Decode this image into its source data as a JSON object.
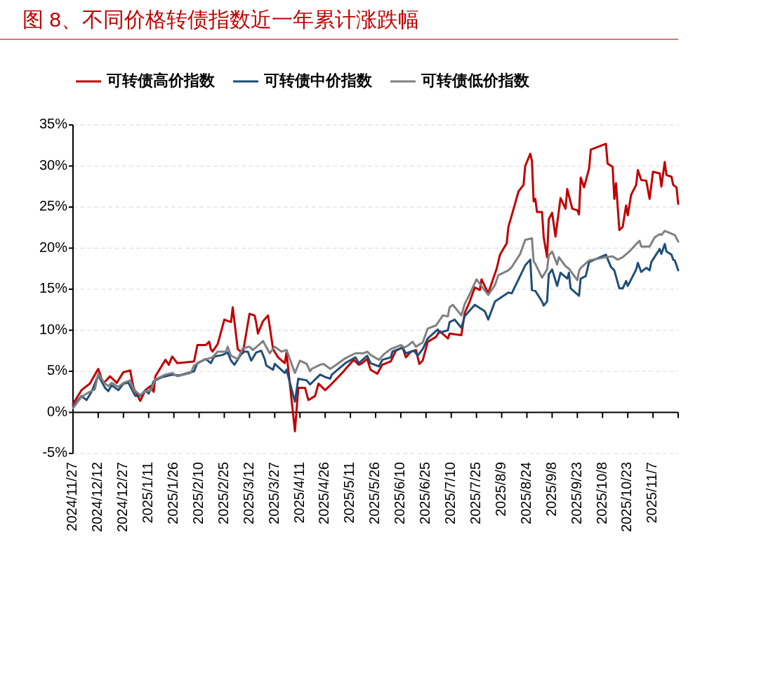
{
  "chart_data": {
    "type": "line",
    "title": "图 8、不同价格转债指数近一年累计涨跌幅",
    "legend": "top",
    "grid": "y",
    "xlim": [
      "2024-11-27",
      "2025-11-22"
    ],
    "xticks": [
      {
        "value": "2024-11-27",
        "label": "2024/11/27"
      },
      {
        "value": "2024-12-12",
        "label": "2024/12/12"
      },
      {
        "value": "2024-12-27",
        "label": "2024/12/27"
      },
      {
        "value": "2025-01-11",
        "label": "2025/1/11"
      },
      {
        "value": "2025-01-26",
        "label": "2025/1/26"
      },
      {
        "value": "2025-02-10",
        "label": "2025/2/10"
      },
      {
        "value": "2025-02-25",
        "label": "2025/2/25"
      },
      {
        "value": "2025-03-12",
        "label": "2025/3/12"
      },
      {
        "value": "2025-03-27",
        "label": "2025/3/27"
      },
      {
        "value": "2025-04-11",
        "label": "2025/4/11"
      },
      {
        "value": "2025-04-26",
        "label": "2025/4/26"
      },
      {
        "value": "2025-05-11",
        "label": "2025/5/11"
      },
      {
        "value": "2025-05-26",
        "label": "2025/5/26"
      },
      {
        "value": "2025-06-10",
        "label": "2025/6/10"
      },
      {
        "value": "2025-06-25",
        "label": "2025/6/25"
      },
      {
        "value": "2025-07-10",
        "label": "2025/7/10"
      },
      {
        "value": "2025-07-25",
        "label": "2025/7/25"
      },
      {
        "value": "2025-08-09",
        "label": "2025/8/9"
      },
      {
        "value": "2025-08-24",
        "label": "2025/8/24"
      },
      {
        "value": "2025-09-08",
        "label": "2025/9/8"
      },
      {
        "value": "2025-09-23",
        "label": "2025/9/23"
      },
      {
        "value": "2025-10-08",
        "label": "2025/10/8"
      },
      {
        "value": "2025-10-23",
        "label": "2025/10/23"
      },
      {
        "value": "2025-11-07",
        "label": "2025/11/7"
      },
      {
        "value": "2025-11-22",
        "label": null
      }
    ],
    "ylim": [
      -5,
      35
    ],
    "yticks": [
      {
        "value": -5,
        "label": "-5%"
      },
      {
        "value": 0,
        "label": "0%"
      },
      {
        "value": 5,
        "label": "5%"
      },
      {
        "value": 10,
        "label": "10%"
      },
      {
        "value": 15,
        "label": "15%"
      },
      {
        "value": 20,
        "label": "20%"
      },
      {
        "value": 25,
        "label": "25%"
      },
      {
        "value": 30,
        "label": "30%"
      },
      {
        "value": 35,
        "label": "35%"
      }
    ],
    "series": [
      {
        "name": "可转债高价指数",
        "color": "#c00000",
        "x": [
          "2024-11-27",
          "2024-12-02",
          "2024-12-07",
          "2024-12-12",
          "2024-12-15",
          "2024-12-19",
          "2024-12-23",
          "2024-12-27",
          "2024-12-31",
          "2025-01-02",
          "2025-01-06",
          "2025-01-09",
          "2025-01-12",
          "2025-01-14",
          "2025-01-15",
          "2025-01-21",
          "2025-01-23",
          "2025-01-25",
          "2025-01-28",
          "2025-02-07",
          "2025-02-09",
          "2025-02-14",
          "2025-02-16",
          "2025-02-17",
          "2025-02-18",
          "2025-02-21",
          "2025-02-22",
          "2025-02-25",
          "2025-03-01",
          "2025-03-02",
          "2025-03-05",
          "2025-03-08",
          "2025-03-12",
          "2025-03-15",
          "2025-03-16",
          "2025-03-17",
          "2025-03-20",
          "2025-03-23",
          "2025-03-24",
          "2025-03-26",
          "2025-03-29",
          "2025-04-02",
          "2025-04-03",
          "2025-04-08",
          "2025-04-10",
          "2025-04-14",
          "2025-04-16",
          "2025-04-20",
          "2025-04-22",
          "2025-04-26",
          "2025-04-30",
          "2025-05-07",
          "2025-05-09",
          "2025-05-13",
          "2025-05-16",
          "2025-05-18",
          "2025-05-21",
          "2025-05-23",
          "2025-05-27",
          "2025-05-30",
          "2025-06-04",
          "2025-06-07",
          "2025-06-11",
          "2025-06-13",
          "2025-06-16",
          "2025-06-19",
          "2025-06-21",
          "2025-06-23",
          "2025-06-26",
          "2025-07-01",
          "2025-07-03",
          "2025-07-08",
          "2025-07-09",
          "2025-07-16",
          "2025-07-18",
          "2025-07-21",
          "2025-07-24",
          "2025-07-27",
          "2025-07-28",
          "2025-08-01",
          "2025-08-06",
          "2025-08-08",
          "2025-08-12",
          "2025-08-13",
          "2025-08-15",
          "2025-08-19",
          "2025-08-22",
          "2025-08-23",
          "2025-08-26",
          "2025-08-27",
          "2025-08-28",
          "2025-08-29",
          "2025-08-30",
          "2025-09-02",
          "2025-09-03",
          "2025-09-05",
          "2025-09-06",
          "2025-09-08",
          "2025-09-10",
          "2025-09-13",
          "2025-09-16",
          "2025-09-17",
          "2025-09-20",
          "2025-09-23",
          "2025-09-24",
          "2025-09-25",
          "2025-09-27",
          "2025-09-30",
          "2025-10-01",
          "2025-10-10",
          "2025-10-11",
          "2025-10-14",
          "2025-10-15",
          "2025-10-16",
          "2025-10-18",
          "2025-10-20",
          "2025-10-22",
          "2025-10-23",
          "2025-10-25",
          "2025-10-28",
          "2025-10-29",
          "2025-10-31",
          "2025-11-03",
          "2025-11-05",
          "2025-11-07",
          "2025-11-11",
          "2025-11-12",
          "2025-11-14",
          "2025-11-15",
          "2025-11-18",
          "2025-11-19",
          "2025-11-21",
          "2025-11-22"
        ],
        "values": [
          1.0,
          2.7,
          3.5,
          5.3,
          3.5,
          4.4,
          3.6,
          4.9,
          5.1,
          3.0,
          1.4,
          2.7,
          3.2,
          2.5,
          4.4,
          6.4,
          5.8,
          6.8,
          6.0,
          6.2,
          8.2,
          8.2,
          8.6,
          7.7,
          7.4,
          8.3,
          9.0,
          11.3,
          11.0,
          12.8,
          7.7,
          7.2,
          12.0,
          11.8,
          10.9,
          9.6,
          11.1,
          11.8,
          10.5,
          7.7,
          6.7,
          6.0,
          7.3,
          -2.3,
          3.0,
          3.0,
          1.5,
          2.0,
          3.5,
          2.7,
          3.5,
          5.0,
          5.5,
          6.4,
          5.8,
          6.0,
          6.5,
          5.2,
          4.7,
          5.8,
          6.2,
          7.5,
          7.9,
          6.7,
          7.4,
          7.6,
          5.9,
          6.3,
          8.6,
          9.2,
          9.9,
          9.0,
          9.6,
          9.4,
          12.1,
          13.5,
          15.2,
          14.9,
          16.2,
          14.5,
          17.5,
          19.2,
          20.6,
          22.6,
          24.0,
          26.9,
          27.7,
          30.0,
          31.5,
          30.6,
          25.7,
          26.0,
          24.4,
          24.4,
          21.3,
          18.9,
          23.5,
          24.3,
          21.4,
          26.1,
          24.8,
          27.2,
          24.8,
          24.6,
          24.1,
          28.6,
          27.4,
          29.7,
          32.0,
          32.7,
          30.3,
          29.9,
          26.0,
          27.9,
          22.2,
          22.6,
          25.2,
          24.0,
          26.5,
          27.7,
          29.5,
          28.3,
          28.2,
          26.0,
          29.3,
          29.1,
          27.5,
          30.5,
          28.9,
          28.7,
          27.7,
          27.4,
          25.4
        ]
      },
      {
        "name": "可转债中价指数",
        "color": "#1f4e79",
        "x": [
          "2024-11-27",
          "2024-12-02",
          "2024-12-05",
          "2024-12-08",
          "2024-12-12",
          "2024-12-16",
          "2024-12-18",
          "2024-12-20",
          "2024-12-24",
          "2024-12-27",
          "2024-12-30",
          "2025-01-03",
          "2025-01-06",
          "2025-01-09",
          "2025-01-11",
          "2025-01-14",
          "2025-01-19",
          "2025-01-25",
          "2025-01-29",
          "2025-02-07",
          "2025-02-09",
          "2025-02-14",
          "2025-02-17",
          "2025-02-19",
          "2025-02-24",
          "2025-02-27",
          "2025-03-01",
          "2025-03-03",
          "2025-03-08",
          "2025-03-11",
          "2025-03-13",
          "2025-03-16",
          "2025-03-19",
          "2025-03-21",
          "2025-03-22",
          "2025-03-26",
          "2025-03-27",
          "2025-04-02",
          "2025-04-03",
          "2025-04-08",
          "2025-04-10",
          "2025-04-15",
          "2025-04-17",
          "2025-04-23",
          "2025-04-26",
          "2025-04-29",
          "2025-04-30",
          "2025-05-08",
          "2025-05-14",
          "2025-05-16",
          "2025-05-21",
          "2025-05-23",
          "2025-05-28",
          "2025-05-30",
          "2025-06-04",
          "2025-06-05",
          "2025-06-11",
          "2025-06-13",
          "2025-06-18",
          "2025-06-20",
          "2025-06-23",
          "2025-06-26",
          "2025-07-02",
          "2025-07-03",
          "2025-07-08",
          "2025-07-09",
          "2025-07-12",
          "2025-07-16",
          "2025-07-18",
          "2025-07-24",
          "2025-07-30",
          "2025-08-01",
          "2025-08-05",
          "2025-08-13",
          "2025-08-15",
          "2025-08-23",
          "2025-08-26",
          "2025-08-27",
          "2025-08-29",
          "2025-09-02",
          "2025-09-03",
          "2025-09-05",
          "2025-09-06",
          "2025-09-08",
          "2025-09-11",
          "2025-09-13",
          "2025-09-17",
          "2025-09-18",
          "2025-09-19",
          "2025-09-24",
          "2025-09-25",
          "2025-09-28",
          "2025-09-30",
          "2025-10-10",
          "2025-10-13",
          "2025-10-15",
          "2025-10-18",
          "2025-10-20",
          "2025-10-22",
          "2025-10-23",
          "2025-10-28",
          "2025-10-29",
          "2025-10-31",
          "2025-11-03",
          "2025-11-05",
          "2025-11-06",
          "2025-11-11",
          "2025-11-12",
          "2025-11-14",
          "2025-11-15",
          "2025-11-18",
          "2025-11-19",
          "2025-11-20",
          "2025-11-22"
        ],
        "values": [
          0.7,
          2.0,
          1.5,
          2.5,
          4.5,
          3.0,
          2.6,
          3.3,
          2.7,
          3.5,
          3.6,
          2.0,
          2.0,
          2.7,
          2.3,
          3.8,
          4.3,
          4.6,
          4.5,
          5.0,
          6.0,
          6.5,
          6.0,
          6.8,
          7.0,
          7.3,
          6.3,
          5.8,
          7.4,
          7.4,
          6.3,
          7.3,
          7.5,
          6.5,
          5.7,
          5.2,
          5.9,
          4.8,
          5.2,
          1.3,
          4.1,
          3.9,
          3.4,
          4.6,
          4.3,
          4.1,
          4.6,
          6.0,
          6.7,
          6.0,
          6.9,
          6.0,
          5.6,
          6.4,
          6.7,
          7.4,
          7.9,
          7.2,
          7.5,
          6.9,
          7.7,
          9.0,
          10.1,
          9.7,
          10.0,
          11.0,
          11.3,
          10.3,
          11.7,
          13.1,
          12.3,
          11.3,
          13.5,
          14.6,
          14.5,
          17.9,
          18.6,
          14.9,
          14.8,
          13.5,
          13.0,
          13.5,
          16.8,
          17.4,
          15.4,
          17.0,
          16.3,
          17.0,
          15.1,
          14.2,
          16.3,
          16.6,
          18.3,
          19.2,
          17.7,
          17.3,
          15.1,
          15.1,
          16.0,
          15.4,
          17.4,
          18.2,
          17.1,
          17.6,
          17.3,
          18.3,
          19.9,
          19.3,
          20.5,
          19.6,
          19.2,
          18.6,
          18.5,
          17.3
        ]
      },
      {
        "name": "可转债低价指数",
        "color": "#808080",
        "x": [
          "2024-11-27",
          "2024-12-02",
          "2024-12-06",
          "2024-12-10",
          "2024-12-12",
          "2024-12-16",
          "2024-12-18",
          "2024-12-20",
          "2024-12-24",
          "2024-12-27",
          "2024-12-31",
          "2025-01-02",
          "2025-01-06",
          "2025-01-09",
          "2025-01-12",
          "2025-01-15",
          "2025-01-21",
          "2025-01-25",
          "2025-01-28",
          "2025-02-05",
          "2025-02-07",
          "2025-02-13",
          "2025-02-18",
          "2025-02-21",
          "2025-02-26",
          "2025-02-27",
          "2025-03-01",
          "2025-03-05",
          "2025-03-08",
          "2025-03-12",
          "2025-03-14",
          "2025-03-18",
          "2025-03-20",
          "2025-03-24",
          "2025-03-27",
          "2025-03-31",
          "2025-04-03",
          "2025-04-08",
          "2025-04-11",
          "2025-04-13",
          "2025-04-15",
          "2025-04-17",
          "2025-04-18",
          "2025-04-23",
          "2025-04-25",
          "2025-04-29",
          "2025-05-02",
          "2025-05-08",
          "2025-05-14",
          "2025-05-19",
          "2025-05-21",
          "2025-05-23",
          "2025-05-28",
          "2025-05-31",
          "2025-06-04",
          "2025-06-10",
          "2025-06-12",
          "2025-06-14",
          "2025-06-17",
          "2025-06-19",
          "2025-06-23",
          "2025-06-26",
          "2025-07-01",
          "2025-07-05",
          "2025-07-08",
          "2025-07-09",
          "2025-07-11",
          "2025-07-16",
          "2025-07-18",
          "2025-07-21",
          "2025-07-25",
          "2025-07-29",
          "2025-08-01",
          "2025-08-05",
          "2025-08-07",
          "2025-08-13",
          "2025-08-15",
          "2025-08-20",
          "2025-08-23",
          "2025-08-27",
          "2025-08-28",
          "2025-08-29",
          "2025-09-02",
          "2025-09-05",
          "2025-09-06",
          "2025-09-08",
          "2025-09-11",
          "2025-09-12",
          "2025-09-16",
          "2025-09-18",
          "2025-09-23",
          "2025-09-24",
          "2025-09-25",
          "2025-09-30",
          "2025-10-10",
          "2025-10-14",
          "2025-10-17",
          "2025-10-20",
          "2025-10-24",
          "2025-10-28",
          "2025-10-30",
          "2025-10-31",
          "2025-11-05",
          "2025-11-08",
          "2025-11-11",
          "2025-11-12",
          "2025-11-14",
          "2025-11-20",
          "2025-11-22"
        ],
        "values": [
          0.5,
          1.9,
          2.4,
          2.8,
          4.7,
          3.5,
          3.2,
          3.6,
          3.1,
          3.6,
          3.9,
          2.8,
          2.1,
          2.6,
          2.6,
          4.0,
          4.6,
          4.8,
          4.4,
          4.8,
          5.7,
          6.4,
          6.7,
          7.4,
          7.4,
          8.0,
          6.9,
          6.5,
          7.8,
          8.0,
          7.6,
          8.3,
          8.7,
          7.2,
          8.0,
          7.4,
          7.6,
          4.8,
          6.3,
          6.1,
          5.9,
          5.0,
          5.3,
          5.8,
          5.9,
          5.3,
          5.7,
          6.6,
          7.2,
          7.2,
          7.4,
          7.0,
          6.4,
          7.1,
          7.7,
          8.2,
          7.9,
          8.1,
          8.6,
          8.0,
          8.5,
          10.2,
          10.6,
          11.8,
          11.7,
          12.8,
          13.1,
          11.8,
          13.2,
          14.4,
          16.2,
          15.1,
          14.3,
          15.5,
          16.7,
          17.3,
          17.7,
          19.3,
          21.0,
          21.2,
          18.4,
          18.1,
          16.4,
          17.4,
          19.1,
          19.6,
          18.0,
          18.9,
          17.8,
          17.5,
          16.1,
          17.2,
          17.6,
          18.5,
          18.9,
          19.0,
          18.6,
          18.9,
          19.6,
          20.5,
          20.9,
          20.2,
          20.2,
          21.3,
          21.7,
          21.6,
          22.1,
          21.6,
          20.8
        ]
      }
    ]
  }
}
